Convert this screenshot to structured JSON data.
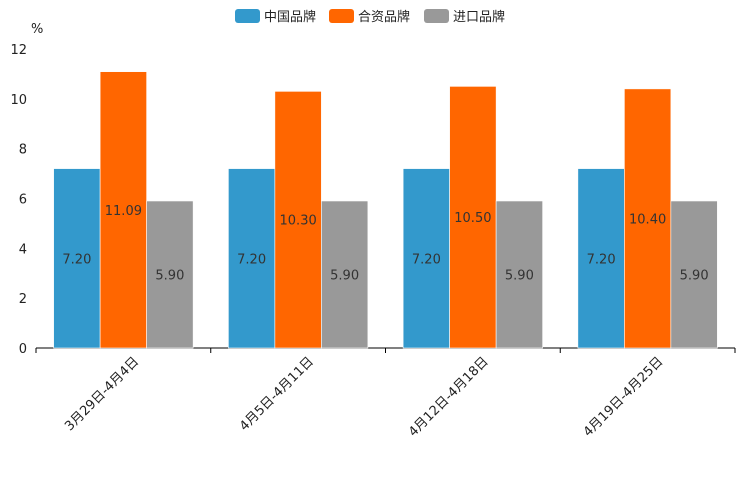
{
  "chart_data": {
    "type": "bar",
    "ylabel": "%",
    "ylim": [
      0,
      12
    ],
    "yticks": [
      0,
      2,
      4,
      6,
      8,
      10,
      12
    ],
    "grid": false,
    "legend_position": "top-center",
    "categories": [
      "3月29日-4月4日",
      "4月5日-4月11日",
      "4月12日-4月18日",
      "4月19日-4月25日"
    ],
    "series": [
      {
        "name": "中国品牌",
        "color": "#3399cc",
        "values": [
          7.2,
          7.2,
          7.2,
          7.2
        ],
        "labels": [
          "7.20",
          "7.20",
          "7.20",
          "7.20"
        ]
      },
      {
        "name": "合资品牌",
        "color": "#ff6600",
        "values": [
          11.09,
          10.3,
          10.5,
          10.4
        ],
        "labels": [
          "11.09",
          "10.30",
          "10.50",
          "10.40"
        ]
      },
      {
        "name": "进口品牌",
        "color": "#999999",
        "values": [
          5.9,
          5.9,
          5.9,
          5.9
        ],
        "labels": [
          "5.90",
          "5.90",
          "5.90",
          "5.90"
        ]
      }
    ]
  }
}
